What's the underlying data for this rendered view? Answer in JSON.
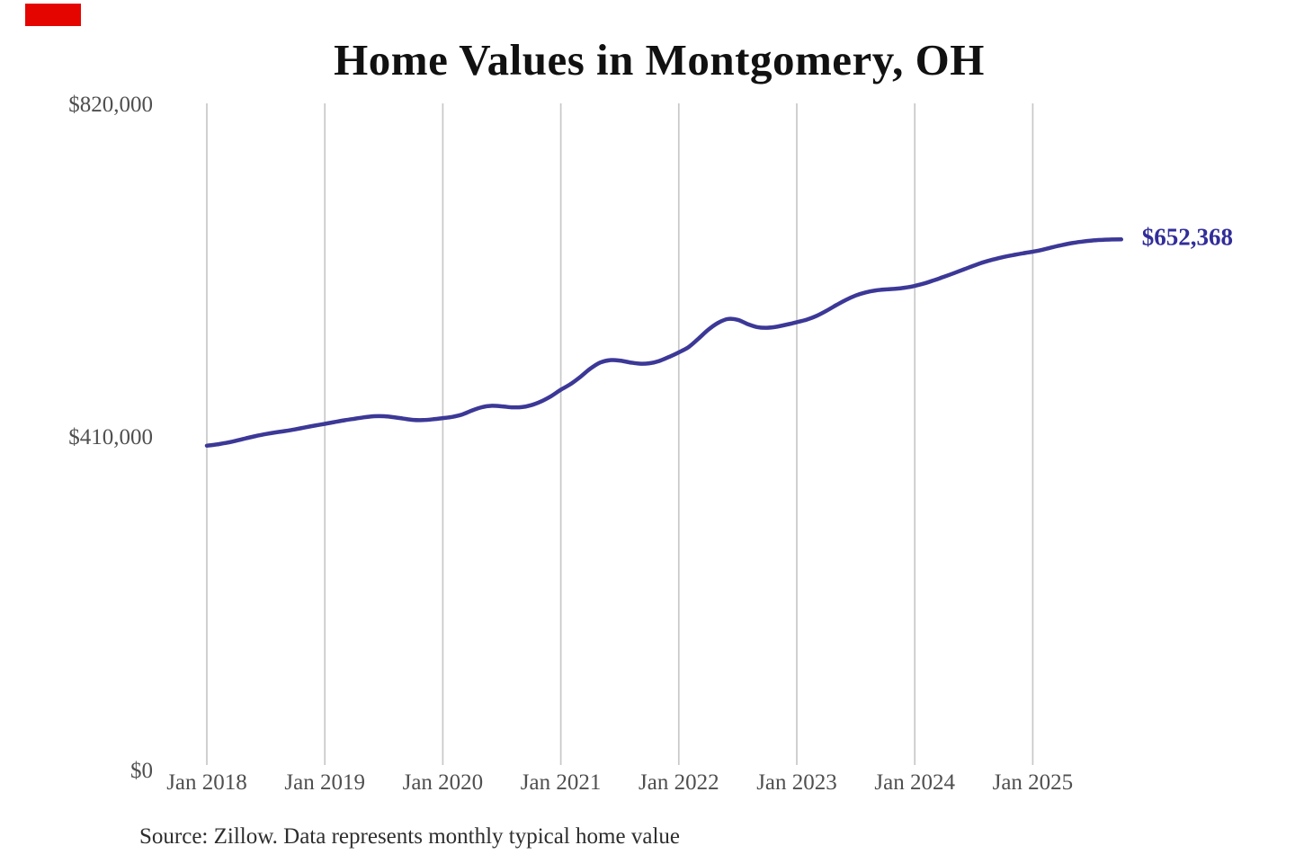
{
  "page": {
    "background_color": "#ffffff",
    "marker_color": "#e50500"
  },
  "colors": {
    "line": "#3c3897",
    "end_label": "#312d99",
    "gridline": "#c8c8c8",
    "tick_text": "#4f4f4f",
    "title_text": "#111111",
    "source_text": "#2e2e2e"
  },
  "chart_data": {
    "type": "line",
    "title": "Home Values in Montgomery, OH",
    "source_note": "Source: Zillow. Data represents monthly typical home value",
    "end_label": "$652,368",
    "latest_value": 652368,
    "ylim": [
      0,
      820000
    ],
    "grid": "vertical-only",
    "y_ticks": [
      {
        "label": "$820,000",
        "value": 820000
      },
      {
        "label": "$410,000",
        "value": 410000
      },
      {
        "label": "$0",
        "value": 0
      }
    ],
    "x_tick_labels": [
      "Jan 2018",
      "Jan 2019",
      "Jan 2020",
      "Jan 2021",
      "Jan 2022",
      "Jan 2023",
      "Jan 2024",
      "Jan 2025"
    ],
    "months": [
      "2018-01",
      "2018-02",
      "2018-03",
      "2018-04",
      "2018-05",
      "2018-06",
      "2018-07",
      "2018-08",
      "2018-09",
      "2018-10",
      "2018-11",
      "2018-12",
      "2019-01",
      "2019-02",
      "2019-03",
      "2019-04",
      "2019-05",
      "2019-06",
      "2019-07",
      "2019-08",
      "2019-09",
      "2019-10",
      "2019-11",
      "2019-12",
      "2020-01",
      "2020-02",
      "2020-03",
      "2020-04",
      "2020-05",
      "2020-06",
      "2020-07",
      "2020-08",
      "2020-09",
      "2020-10",
      "2020-11",
      "2020-12",
      "2021-01",
      "2021-02",
      "2021-03",
      "2021-04",
      "2021-05",
      "2021-06",
      "2021-07",
      "2021-08",
      "2021-09",
      "2021-10",
      "2021-11",
      "2021-12",
      "2022-01",
      "2022-02",
      "2022-03",
      "2022-04",
      "2022-05",
      "2022-06",
      "2022-07",
      "2022-08",
      "2022-09",
      "2022-10",
      "2022-11",
      "2022-12",
      "2023-01",
      "2023-02",
      "2023-03",
      "2023-04",
      "2023-05",
      "2023-06",
      "2023-07",
      "2023-08",
      "2023-09",
      "2023-10",
      "2023-11",
      "2023-12",
      "2024-01",
      "2024-02",
      "2024-03",
      "2024-04",
      "2024-05",
      "2024-06",
      "2024-07",
      "2024-08",
      "2024-09",
      "2024-10",
      "2024-11",
      "2024-12",
      "2025-01",
      "2025-02",
      "2025-03",
      "2025-04",
      "2025-05",
      "2025-06",
      "2025-07",
      "2025-08",
      "2025-09",
      "2025-10"
    ],
    "values": [
      398000,
      399600,
      401600,
      404200,
      407200,
      410000,
      412400,
      414400,
      416200,
      418200,
      420600,
      422800,
      425000,
      427200,
      429400,
      431200,
      433000,
      434400,
      434400,
      433200,
      431400,
      429800,
      429600,
      430600,
      432000,
      433600,
      436600,
      441600,
      445600,
      447200,
      446600,
      445400,
      445600,
      448000,
      452600,
      459000,
      467000,
      474000,
      483000,
      493000,
      500500,
      503500,
      503000,
      500800,
      499200,
      499600,
      502400,
      507400,
      513000,
      519600,
      530000,
      541000,
      549500,
      554300,
      553200,
      548000,
      544200,
      543400,
      544800,
      547400,
      550300,
      553400,
      558000,
      564200,
      571200,
      577800,
      583200,
      587000,
      589400,
      590600,
      591400,
      592800,
      595000,
      598200,
      602200,
      606400,
      610800,
      615400,
      620000,
      624200,
      627600,
      630600,
      633000,
      635200,
      637200,
      639600,
      642600,
      645400,
      647800,
      649600,
      650900,
      651700,
      652200,
      652368
    ]
  }
}
